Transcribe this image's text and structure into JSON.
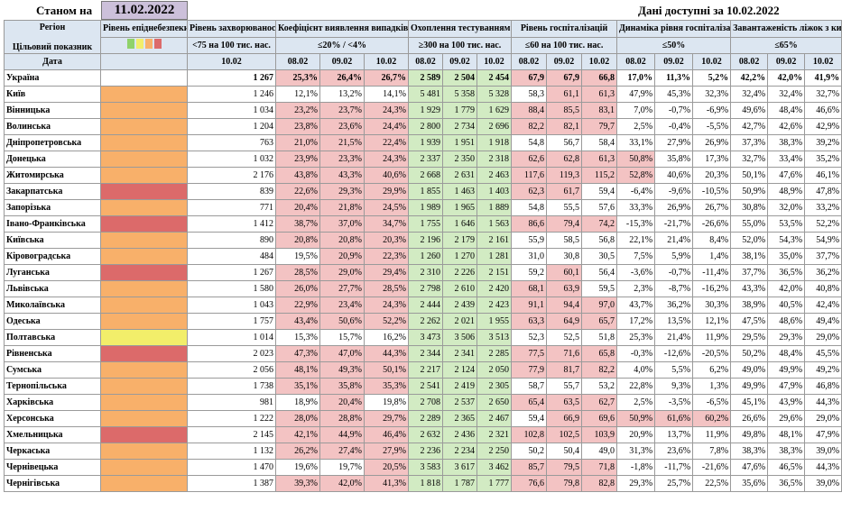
{
  "header": {
    "stan_label": "Станом на",
    "date": "11.02.2022",
    "available": "Дані доступні за  10.02.2022"
  },
  "columns": {
    "region": "Регіон",
    "target": "Цільовий показник",
    "date_label": "Дата",
    "risk": "Рівень епіднебезпеки",
    "incidence": "Рівень захворюваності",
    "incidence_target": "<75 на 100 тис. нас.",
    "coef": "Коефіцієнт виявлення випадків інфікування",
    "coef_target": "≤20% / <4%",
    "testing": "Охоплення тестуванням",
    "testing_target": "≥300 на 100 тис. нас.",
    "hosp": "Рівень госпіталізацій",
    "hosp_target": "≤60 на 100 тис. нас.",
    "dyn": "Динаміка рівня госпіталізацій",
    "dyn_target": "≤50%",
    "oxy": "Завантаженість ліжок з киснем",
    "oxy_target": "≤65%",
    "d_inc": "10.02",
    "d1": "08.02",
    "d2": "09.02",
    "d3": "10.02"
  },
  "legend_colors": [
    "#8fd26a",
    "#f2ee6a",
    "#f8b06a",
    "#dc6a6a"
  ],
  "rows": [
    {
      "name": "Україна",
      "risk": "",
      "inc": "1 267",
      "coef": [
        "25,3%",
        "26,4%",
        "26,7%"
      ],
      "test": [
        "2 589",
        "2 504",
        "2 454"
      ],
      "hosp": [
        "67,9",
        "67,9",
        "66,8"
      ],
      "dyn": [
        "17,0%",
        "11,3%",
        "5,2%"
      ],
      "oxy": [
        "42,2%",
        "42,0%",
        "41,9%"
      ]
    },
    {
      "name": "Київ",
      "risk": "orange",
      "inc": "1 246",
      "coef": [
        "12,1%",
        "13,2%",
        "14,1%"
      ],
      "test": [
        "5 481",
        "5 358",
        "5 328"
      ],
      "hosp": [
        "58,3",
        "61,1",
        "61,3"
      ],
      "dyn": [
        "47,9%",
        "45,3%",
        "32,3%"
      ],
      "oxy": [
        "32,4%",
        "32,4%",
        "32,7%"
      ]
    },
    {
      "name": "Вінницька",
      "risk": "orange",
      "inc": "1 034",
      "coef": [
        "23,2%",
        "23,7%",
        "24,3%"
      ],
      "test": [
        "1 929",
        "1 779",
        "1 629"
      ],
      "hosp": [
        "88,4",
        "85,5",
        "83,1"
      ],
      "dyn": [
        "7,0%",
        "-0,7%",
        "-6,9%"
      ],
      "oxy": [
        "49,6%",
        "48,4%",
        "46,6%"
      ]
    },
    {
      "name": "Волинська",
      "risk": "orange",
      "inc": "1 204",
      "coef": [
        "23,8%",
        "23,6%",
        "24,4%"
      ],
      "test": [
        "2 800",
        "2 734",
        "2 696"
      ],
      "hosp": [
        "82,2",
        "82,1",
        "79,7"
      ],
      "dyn": [
        "2,5%",
        "-0,4%",
        "-5,5%"
      ],
      "oxy": [
        "42,7%",
        "42,6%",
        "42,9%"
      ]
    },
    {
      "name": "Дніпропетровська",
      "risk": "orange",
      "inc": "763",
      "coef": [
        "21,0%",
        "21,5%",
        "22,4%"
      ],
      "test": [
        "1 939",
        "1 951",
        "1 918"
      ],
      "hosp": [
        "54,8",
        "56,7",
        "58,4"
      ],
      "dyn": [
        "33,1%",
        "27,9%",
        "26,9%"
      ],
      "oxy": [
        "37,3%",
        "38,3%",
        "39,2%"
      ]
    },
    {
      "name": "Донецька",
      "risk": "orange",
      "inc": "1 032",
      "coef": [
        "23,9%",
        "23,3%",
        "24,3%"
      ],
      "test": [
        "2 337",
        "2 350",
        "2 318"
      ],
      "hosp": [
        "62,6",
        "62,8",
        "61,3"
      ],
      "dyn": [
        "50,8%",
        "35,8%",
        "17,3%"
      ],
      "oxy": [
        "32,7%",
        "33,4%",
        "35,2%"
      ]
    },
    {
      "name": "Житомирська",
      "risk": "orange",
      "inc": "2 176",
      "coef": [
        "43,8%",
        "43,3%",
        "40,6%"
      ],
      "test": [
        "2 668",
        "2 631",
        "2 463"
      ],
      "hosp": [
        "117,6",
        "119,3",
        "115,2"
      ],
      "dyn": [
        "52,8%",
        "40,6%",
        "20,3%"
      ],
      "oxy": [
        "50,1%",
        "47,6%",
        "46,1%"
      ]
    },
    {
      "name": "Закарпатська",
      "risk": "red",
      "inc": "839",
      "coef": [
        "22,6%",
        "29,3%",
        "29,9%"
      ],
      "test": [
        "1 855",
        "1 463",
        "1 403"
      ],
      "hosp": [
        "62,3",
        "61,7",
        "59,4"
      ],
      "dyn": [
        "-6,4%",
        "-9,6%",
        "-10,5%"
      ],
      "oxy": [
        "50,9%",
        "48,9%",
        "47,8%"
      ]
    },
    {
      "name": "Запорізька",
      "risk": "orange",
      "inc": "771",
      "coef": [
        "20,4%",
        "21,8%",
        "24,5%"
      ],
      "test": [
        "1 989",
        "1 965",
        "1 889"
      ],
      "hosp": [
        "54,8",
        "55,5",
        "57,6"
      ],
      "dyn": [
        "33,3%",
        "26,9%",
        "26,7%"
      ],
      "oxy": [
        "30,8%",
        "32,0%",
        "33,2%"
      ]
    },
    {
      "name": "Івано-Франківська",
      "risk": "red",
      "inc": "1 412",
      "coef": [
        "38,7%",
        "37,0%",
        "34,7%"
      ],
      "test": [
        "1 755",
        "1 646",
        "1 563"
      ],
      "hosp": [
        "86,6",
        "79,4",
        "74,2"
      ],
      "dyn": [
        "-15,3%",
        "-21,7%",
        "-26,6%"
      ],
      "oxy": [
        "55,0%",
        "53,5%",
        "52,2%"
      ]
    },
    {
      "name": "Київська",
      "risk": "orange",
      "inc": "890",
      "coef": [
        "20,8%",
        "20,8%",
        "20,3%"
      ],
      "test": [
        "2 196",
        "2 179",
        "2 161"
      ],
      "hosp": [
        "55,9",
        "58,5",
        "56,8"
      ],
      "dyn": [
        "22,1%",
        "21,4%",
        "8,4%"
      ],
      "oxy": [
        "52,0%",
        "54,3%",
        "54,9%"
      ]
    },
    {
      "name": "Кіровоградська",
      "risk": "orange",
      "inc": "484",
      "coef": [
        "19,5%",
        "20,9%",
        "22,3%"
      ],
      "test": [
        "1 260",
        "1 270",
        "1 281"
      ],
      "hosp": [
        "31,0",
        "30,8",
        "30,5"
      ],
      "dyn": [
        "7,5%",
        "5,9%",
        "1,4%"
      ],
      "oxy": [
        "38,1%",
        "35,0%",
        "37,7%"
      ]
    },
    {
      "name": "Луганська",
      "risk": "red",
      "inc": "1 267",
      "coef": [
        "28,5%",
        "29,0%",
        "29,4%"
      ],
      "test": [
        "2 310",
        "2 226",
        "2 151"
      ],
      "hosp": [
        "59,2",
        "60,1",
        "56,4"
      ],
      "dyn": [
        "-3,6%",
        "-0,7%",
        "-11,4%"
      ],
      "oxy": [
        "37,7%",
        "36,5%",
        "36,2%"
      ]
    },
    {
      "name": "Львівська",
      "risk": "orange",
      "inc": "1 580",
      "coef": [
        "26,0%",
        "27,7%",
        "28,5%"
      ],
      "test": [
        "2 798",
        "2 610",
        "2 420"
      ],
      "hosp": [
        "68,1",
        "63,9",
        "59,5"
      ],
      "dyn": [
        "2,3%",
        "-8,7%",
        "-16,2%"
      ],
      "oxy": [
        "43,3%",
        "42,0%",
        "40,8%"
      ]
    },
    {
      "name": "Миколаївська",
      "risk": "orange",
      "inc": "1 043",
      "coef": [
        "22,9%",
        "23,4%",
        "24,3%"
      ],
      "test": [
        "2 444",
        "2 439",
        "2 423"
      ],
      "hosp": [
        "91,1",
        "94,4",
        "97,0"
      ],
      "dyn": [
        "43,7%",
        "36,2%",
        "30,3%"
      ],
      "oxy": [
        "38,9%",
        "40,5%",
        "42,4%"
      ]
    },
    {
      "name": "Одеська",
      "risk": "orange",
      "inc": "1 757",
      "coef": [
        "43,4%",
        "50,6%",
        "52,2%"
      ],
      "test": [
        "2 262",
        "2 021",
        "1 955"
      ],
      "hosp": [
        "63,3",
        "64,9",
        "65,7"
      ],
      "dyn": [
        "17,2%",
        "13,5%",
        "12,1%"
      ],
      "oxy": [
        "47,5%",
        "48,6%",
        "49,4%"
      ]
    },
    {
      "name": "Полтавська",
      "risk": "yellow",
      "inc": "1 014",
      "coef": [
        "15,3%",
        "15,7%",
        "16,2%"
      ],
      "test": [
        "3 473",
        "3 506",
        "3 513"
      ],
      "hosp": [
        "52,3",
        "52,5",
        "51,8"
      ],
      "dyn": [
        "25,3%",
        "21,4%",
        "11,9%"
      ],
      "oxy": [
        "29,5%",
        "29,3%",
        "29,0%"
      ]
    },
    {
      "name": "Рівненська",
      "risk": "red",
      "inc": "2 023",
      "coef": [
        "47,3%",
        "47,0%",
        "44,3%"
      ],
      "test": [
        "2 344",
        "2 341",
        "2 285"
      ],
      "hosp": [
        "77,5",
        "71,6",
        "65,8"
      ],
      "dyn": [
        "-0,3%",
        "-12,6%",
        "-20,5%"
      ],
      "oxy": [
        "50,2%",
        "48,4%",
        "45,5%"
      ]
    },
    {
      "name": "Сумська",
      "risk": "orange",
      "inc": "2 056",
      "coef": [
        "48,1%",
        "49,3%",
        "50,1%"
      ],
      "test": [
        "2 217",
        "2 124",
        "2 050"
      ],
      "hosp": [
        "77,9",
        "81,7",
        "82,2"
      ],
      "dyn": [
        "4,0%",
        "5,5%",
        "6,2%"
      ],
      "oxy": [
        "49,0%",
        "49,9%",
        "49,2%"
      ]
    },
    {
      "name": "Тернопільська",
      "risk": "orange",
      "inc": "1 738",
      "coef": [
        "35,1%",
        "35,8%",
        "35,3%"
      ],
      "test": [
        "2 541",
        "2 419",
        "2 305"
      ],
      "hosp": [
        "58,7",
        "55,7",
        "53,2"
      ],
      "dyn": [
        "22,8%",
        "9,3%",
        "1,3%"
      ],
      "oxy": [
        "49,9%",
        "47,9%",
        "46,8%"
      ]
    },
    {
      "name": "Харківська",
      "risk": "orange",
      "inc": "981",
      "coef": [
        "18,9%",
        "20,4%",
        "19,8%"
      ],
      "test": [
        "2 708",
        "2 537",
        "2 650"
      ],
      "hosp": [
        "65,4",
        "63,5",
        "62,7"
      ],
      "dyn": [
        "2,5%",
        "-3,5%",
        "-6,5%"
      ],
      "oxy": [
        "45,1%",
        "43,9%",
        "44,3%"
      ]
    },
    {
      "name": "Херсонська",
      "risk": "orange",
      "inc": "1 222",
      "coef": [
        "28,0%",
        "28,8%",
        "29,7%"
      ],
      "test": [
        "2 289",
        "2 365",
        "2 467"
      ],
      "hosp": [
        "59,4",
        "66,9",
        "69,6"
      ],
      "dyn": [
        "50,9%",
        "61,6%",
        "60,2%"
      ],
      "oxy": [
        "26,6%",
        "29,6%",
        "29,0%"
      ]
    },
    {
      "name": "Хмельницька",
      "risk": "red",
      "inc": "2 145",
      "coef": [
        "42,1%",
        "44,9%",
        "46,4%"
      ],
      "test": [
        "2 632",
        "2 436",
        "2 321"
      ],
      "hosp": [
        "102,8",
        "102,5",
        "103,9"
      ],
      "dyn": [
        "20,9%",
        "13,7%",
        "11,9%"
      ],
      "oxy": [
        "49,8%",
        "48,1%",
        "47,9%"
      ]
    },
    {
      "name": "Черкаська",
      "risk": "orange",
      "inc": "1 132",
      "coef": [
        "26,2%",
        "27,4%",
        "27,9%"
      ],
      "test": [
        "2 236",
        "2 234",
        "2 250"
      ],
      "hosp": [
        "50,2",
        "50,4",
        "49,0"
      ],
      "dyn": [
        "31,3%",
        "23,6%",
        "7,8%"
      ],
      "oxy": [
        "38,3%",
        "38,3%",
        "39,0%"
      ]
    },
    {
      "name": "Чернівецька",
      "risk": "orange",
      "inc": "1 470",
      "coef": [
        "19,6%",
        "19,7%",
        "20,5%"
      ],
      "test": [
        "3 583",
        "3 617",
        "3 462"
      ],
      "hosp": [
        "85,7",
        "79,5",
        "71,8"
      ],
      "dyn": [
        "-1,8%",
        "-11,7%",
        "-21,6%"
      ],
      "oxy": [
        "47,6%",
        "46,5%",
        "44,3%"
      ]
    },
    {
      "name": "Чернігівська",
      "risk": "orange",
      "inc": "1 387",
      "coef": [
        "39,3%",
        "42,0%",
        "41,3%"
      ],
      "test": [
        "1 818",
        "1 787",
        "1 777"
      ],
      "hosp": [
        "76,6",
        "79,8",
        "82,8"
      ],
      "dyn": [
        "29,3%",
        "25,7%",
        "22,5%"
      ],
      "oxy": [
        "35,6%",
        "36,5%",
        "39,0%"
      ]
    }
  ]
}
